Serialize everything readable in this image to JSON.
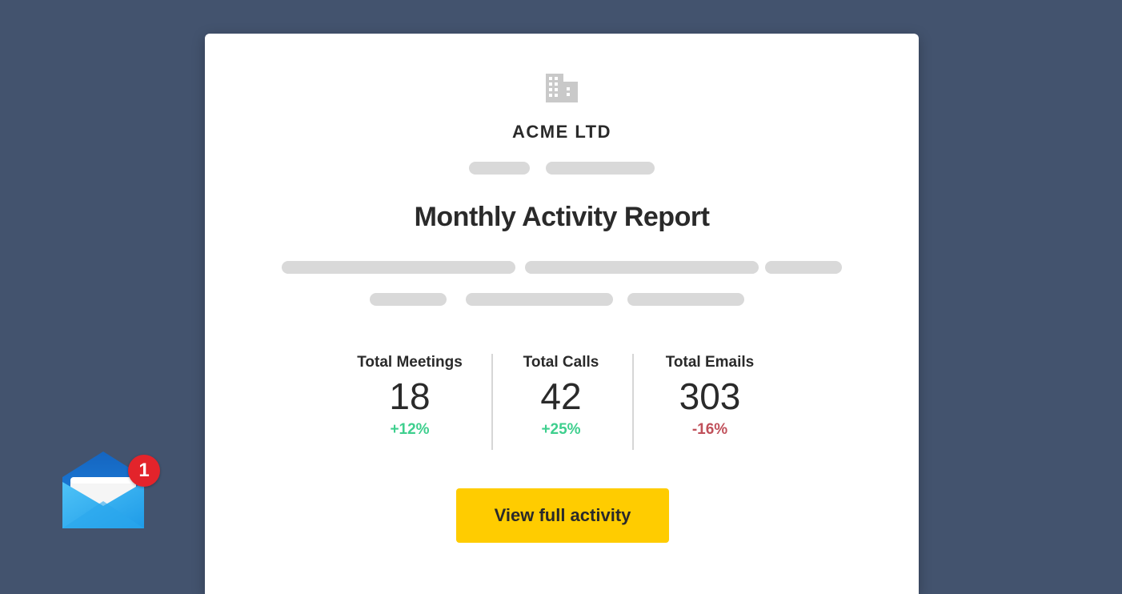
{
  "company": {
    "name": "ACME LTD",
    "icon": "building-icon"
  },
  "email": {
    "title": "Monthly Activity Report",
    "stats": [
      {
        "label": "Total Meetings",
        "value": "18",
        "change": "+12%",
        "trend": "up"
      },
      {
        "label": "Total Calls",
        "value": "42",
        "change": "+25%",
        "trend": "up"
      },
      {
        "label": "Total Emails",
        "value": "303",
        "change": "-16%",
        "trend": "down"
      }
    ],
    "cta_label": "View full activity"
  },
  "notification": {
    "icon": "mail-icon",
    "count": "1"
  },
  "colors": {
    "background": "#43536e",
    "positive": "#3ecf8e",
    "negative": "#c0505a",
    "button": "#ffcc00"
  }
}
